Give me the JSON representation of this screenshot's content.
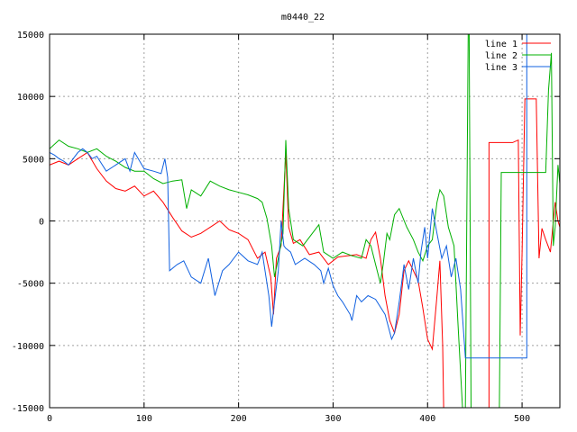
{
  "chart_data": {
    "type": "line",
    "title": "m0440_22",
    "xlabel": "",
    "ylabel": "",
    "xlim": [
      0,
      540
    ],
    "ylim": [
      -15000,
      15000
    ],
    "xticks": [
      0,
      100,
      200,
      300,
      400,
      500
    ],
    "yticks": [
      -15000,
      -10000,
      -5000,
      0,
      5000,
      10000,
      15000
    ],
    "grid": true,
    "legend_position": "top-right",
    "series": [
      {
        "name": "line 1",
        "color": "#ff0000",
        "points": [
          [
            0,
            4500
          ],
          [
            10,
            4800
          ],
          [
            20,
            4500
          ],
          [
            30,
            5000
          ],
          [
            40,
            5500
          ],
          [
            50,
            4200
          ],
          [
            60,
            3200
          ],
          [
            70,
            2600
          ],
          [
            80,
            2400
          ],
          [
            90,
            2800
          ],
          [
            100,
            2000
          ],
          [
            110,
            2400
          ],
          [
            120,
            1500
          ],
          [
            130,
            300
          ],
          [
            140,
            -800
          ],
          [
            150,
            -1300
          ],
          [
            160,
            -1000
          ],
          [
            170,
            -500
          ],
          [
            180,
            0
          ],
          [
            190,
            -700
          ],
          [
            200,
            -1000
          ],
          [
            210,
            -1500
          ],
          [
            220,
            -3000
          ],
          [
            228,
            -2500
          ],
          [
            234,
            -4500
          ],
          [
            237,
            -7500
          ],
          [
            240,
            -3000
          ],
          [
            245,
            -2000
          ],
          [
            250,
            5500
          ],
          [
            253,
            -500
          ],
          [
            258,
            -1800
          ],
          [
            265,
            -1500
          ],
          [
            275,
            -2700
          ],
          [
            285,
            -2500
          ],
          [
            295,
            -3500
          ],
          [
            305,
            -2900
          ],
          [
            315,
            -2800
          ],
          [
            325,
            -2700
          ],
          [
            335,
            -3000
          ],
          [
            340,
            -1500
          ],
          [
            345,
            -900
          ],
          [
            350,
            -3000
          ],
          [
            355,
            -6000
          ],
          [
            360,
            -8000
          ],
          [
            365,
            -9000
          ],
          [
            370,
            -7500
          ],
          [
            375,
            -4000
          ],
          [
            380,
            -3200
          ],
          [
            390,
            -4800
          ],
          [
            395,
            -7000
          ],
          [
            400,
            -9500
          ],
          [
            405,
            -10300
          ],
          [
            410,
            -6000
          ],
          [
            413,
            -3200
          ],
          [
            416,
            -10000
          ],
          [
            417,
            -15000
          ],
          [
            440,
            -15000
          ],
          [
            460,
            -15000
          ],
          [
            465,
            -15000
          ],
          [
            465,
            6300
          ],
          [
            490,
            6300
          ],
          [
            496,
            6500
          ],
          [
            498,
            -9200
          ],
          [
            500,
            -2500
          ],
          [
            503,
            9800
          ],
          [
            515,
            9800
          ],
          [
            518,
            -3000
          ],
          [
            521,
            -600
          ],
          [
            525,
            -1500
          ],
          [
            530,
            -2500
          ],
          [
            535,
            1500
          ],
          [
            538,
            0
          ],
          [
            540,
            -500
          ]
        ]
      },
      {
        "name": "line 2",
        "color": "#00b000",
        "points": [
          [
            0,
            5800
          ],
          [
            10,
            6500
          ],
          [
            20,
            6000
          ],
          [
            30,
            5800
          ],
          [
            40,
            5500
          ],
          [
            50,
            5800
          ],
          [
            60,
            5200
          ],
          [
            70,
            4800
          ],
          [
            80,
            4300
          ],
          [
            90,
            4000
          ],
          [
            100,
            4000
          ],
          [
            110,
            3400
          ],
          [
            120,
            3000
          ],
          [
            130,
            3200
          ],
          [
            140,
            3300
          ],
          [
            145,
            1000
          ],
          [
            150,
            2500
          ],
          [
            160,
            2000
          ],
          [
            170,
            3200
          ],
          [
            180,
            2800
          ],
          [
            190,
            2500
          ],
          [
            200,
            2300
          ],
          [
            210,
            2100
          ],
          [
            220,
            1800
          ],
          [
            225,
            1500
          ],
          [
            230,
            200
          ],
          [
            235,
            -2000
          ],
          [
            238,
            -4500
          ],
          [
            242,
            -3000
          ],
          [
            247,
            -1000
          ],
          [
            250,
            6500
          ],
          [
            253,
            1000
          ],
          [
            258,
            -1500
          ],
          [
            268,
            -2000
          ],
          [
            278,
            -1000
          ],
          [
            285,
            -300
          ],
          [
            290,
            -2500
          ],
          [
            300,
            -3000
          ],
          [
            310,
            -2500
          ],
          [
            320,
            -2800
          ],
          [
            330,
            -3000
          ],
          [
            335,
            -1500
          ],
          [
            340,
            -2000
          ],
          [
            345,
            -3500
          ],
          [
            350,
            -5000
          ],
          [
            353,
            -3500
          ],
          [
            357,
            -1000
          ],
          [
            360,
            -1500
          ],
          [
            365,
            500
          ],
          [
            370,
            1000
          ],
          [
            378,
            -500
          ],
          [
            385,
            -1500
          ],
          [
            390,
            -2500
          ],
          [
            395,
            -3200
          ],
          [
            400,
            -2000
          ],
          [
            405,
            -1500
          ],
          [
            410,
            1500
          ],
          [
            413,
            2500
          ],
          [
            417,
            2000
          ],
          [
            422,
            -500
          ],
          [
            428,
            -2000
          ],
          [
            432,
            -8000
          ],
          [
            437,
            -15000
          ],
          [
            440,
            -15000
          ],
          [
            443,
            15000
          ],
          [
            444,
            15000
          ],
          [
            446,
            -15000
          ],
          [
            470,
            -15000
          ],
          [
            476,
            -15000
          ],
          [
            478,
            3900
          ],
          [
            505,
            3900
          ],
          [
            512,
            3900
          ],
          [
            515,
            3900
          ],
          [
            520,
            3900
          ],
          [
            525,
            3900
          ],
          [
            528,
            10500
          ],
          [
            531,
            13500
          ],
          [
            533,
            -2000
          ],
          [
            535,
            -500
          ],
          [
            538,
            4500
          ],
          [
            540,
            3000
          ]
        ]
      },
      {
        "name": "line 3",
        "color": "#1060e0",
        "points": [
          [
            0,
            5500
          ],
          [
            5,
            5300
          ],
          [
            10,
            5000
          ],
          [
            15,
            4800
          ],
          [
            20,
            4500
          ],
          [
            25,
            5000
          ],
          [
            30,
            5500
          ],
          [
            35,
            5800
          ],
          [
            40,
            5500
          ],
          [
            45,
            5000
          ],
          [
            50,
            5200
          ],
          [
            60,
            4000
          ],
          [
            70,
            4500
          ],
          [
            80,
            5000
          ],
          [
            85,
            4000
          ],
          [
            90,
            5500
          ],
          [
            100,
            4200
          ],
          [
            110,
            4000
          ],
          [
            118,
            3800
          ],
          [
            122,
            5000
          ],
          [
            125,
            3500
          ],
          [
            127,
            -4000
          ],
          [
            135,
            -3500
          ],
          [
            142,
            -3200
          ],
          [
            150,
            -4500
          ],
          [
            160,
            -5000
          ],
          [
            168,
            -3000
          ],
          [
            175,
            -6000
          ],
          [
            183,
            -4000
          ],
          [
            190,
            -3500
          ],
          [
            200,
            -2500
          ],
          [
            210,
            -3200
          ],
          [
            220,
            -3500
          ],
          [
            225,
            -2500
          ],
          [
            232,
            -6000
          ],
          [
            235,
            -8500
          ],
          [
            238,
            -6500
          ],
          [
            242,
            -4000
          ],
          [
            245,
            0
          ],
          [
            248,
            -2000
          ],
          [
            250,
            -2200
          ],
          [
            255,
            -2500
          ],
          [
            260,
            -3500
          ],
          [
            270,
            -3000
          ],
          [
            280,
            -3500
          ],
          [
            287,
            -4000
          ],
          [
            290,
            -5000
          ],
          [
            295,
            -3800
          ],
          [
            300,
            -5200
          ],
          [
            305,
            -6000
          ],
          [
            310,
            -6500
          ],
          [
            318,
            -7500
          ],
          [
            320,
            -8000
          ],
          [
            325,
            -6000
          ],
          [
            330,
            -6500
          ],
          [
            337,
            -6000
          ],
          [
            345,
            -6300
          ],
          [
            355,
            -7500
          ],
          [
            362,
            -9500
          ],
          [
            365,
            -9000
          ],
          [
            370,
            -6500
          ],
          [
            375,
            -3500
          ],
          [
            380,
            -5500
          ],
          [
            385,
            -3000
          ],
          [
            390,
            -5000
          ],
          [
            393,
            -2500
          ],
          [
            397,
            -500
          ],
          [
            400,
            -3000
          ],
          [
            405,
            1000
          ],
          [
            410,
            -1000
          ],
          [
            415,
            -3000
          ],
          [
            420,
            -2000
          ],
          [
            425,
            -4500
          ],
          [
            430,
            -3000
          ],
          [
            435,
            -5500
          ],
          [
            440,
            -11000
          ],
          [
            460,
            -11000
          ],
          [
            470,
            -11000
          ],
          [
            480,
            -11000
          ],
          [
            490,
            -11000
          ],
          [
            505,
            -11000
          ],
          [
            505,
            15000
          ],
          [
            508,
            15000
          ]
        ]
      }
    ]
  }
}
